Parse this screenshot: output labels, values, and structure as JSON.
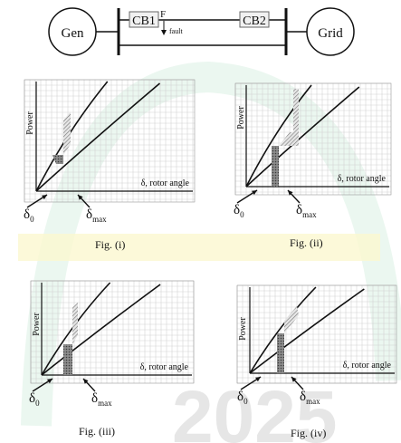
{
  "one_line": {
    "gen_label": "Gen",
    "grid_label": "Grid",
    "cb1_label": "CB1",
    "cb2_label": "CB2",
    "fault_point_label": "F",
    "fault_label": "fault"
  },
  "axes_text": {
    "power_label": "Power",
    "angle_label": "δ, rotor angle",
    "delta0_symbol": "δ",
    "delta0_sub": "0",
    "deltamax_symbol": "δ",
    "deltamax_sub": "max"
  },
  "figures": [
    {
      "caption": "Fig. (i)"
    },
    {
      "caption": "Fig. (ii)"
    },
    {
      "caption": "Fig. (iii)"
    },
    {
      "caption": "Fig. (iv)"
    }
  ],
  "watermark": {
    "text": "2025"
  },
  "colors": {
    "paper": "#ffffff",
    "grid": "#d2d2d2",
    "curve": "#111111",
    "hatch_area": "#9a9a9a",
    "dotted_area": "#7a7a7a",
    "watermark_green": "#e9f6ee",
    "watermark_yellow": "#fbf8cf",
    "watermark_gray": "#e6e6e6"
  }
}
